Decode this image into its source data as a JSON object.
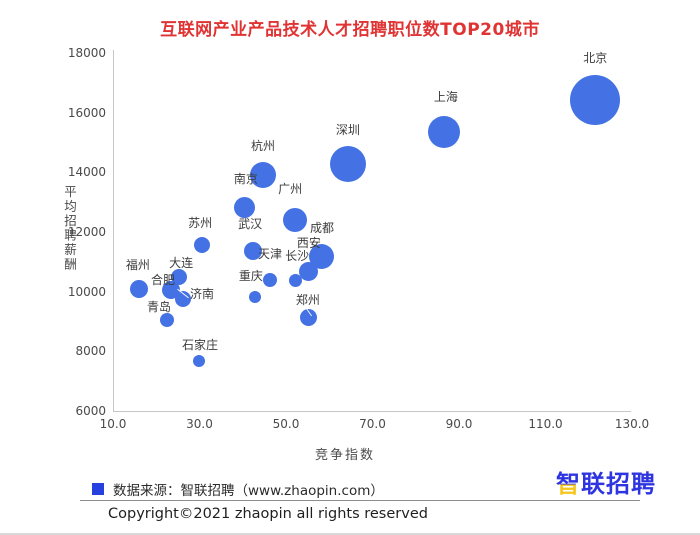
{
  "title": "互联网产业产品技术人才招聘职位数TOP20城市",
  "chart_data": {
    "type": "scatter",
    "title": "互联网产业产品技术人才招聘职位数TOP20城市",
    "xlabel": "竞争指数",
    "ylabel": "平均招聘薪酬",
    "xlim": [
      10,
      130
    ],
    "ylim": [
      6000,
      18000
    ],
    "x_ticks": [
      "10.0",
      "30.0",
      "50.0",
      "70.0",
      "90.0",
      "110.0",
      "130.0"
    ],
    "y_ticks": [
      "18000",
      "16000",
      "14000",
      "12000",
      "10000",
      "8000",
      "6000"
    ],
    "grid": false,
    "legend_position": "bottom-left",
    "bubble_size_meaning": "招聘职位数",
    "series": [
      {
        "name": "北京",
        "index": 121.5,
        "salary": 16470,
        "r": 25,
        "label_dx": 0,
        "label_dy": -43
      },
      {
        "name": "上海",
        "index": 86.5,
        "salary": 15370,
        "r": 16,
        "label_dx": 2,
        "label_dy": -36
      },
      {
        "name": "深圳",
        "index": 64.3,
        "salary": 14300,
        "r": 18,
        "label_dx": 0,
        "label_dy": -35
      },
      {
        "name": "杭州",
        "index": 44.7,
        "salary": 13930,
        "r": 13,
        "label_dx": 0,
        "label_dy": -30
      },
      {
        "name": "南京",
        "index": 40.5,
        "salary": 12870,
        "r": 10.5,
        "label_dx": 1,
        "label_dy": -29
      },
      {
        "name": "广州",
        "index": 52.1,
        "salary": 12430,
        "r": 12,
        "label_dx": -5,
        "label_dy": -32
      },
      {
        "name": "苏州",
        "index": 30.6,
        "salary": 11600,
        "r": 8,
        "label_dx": -2,
        "label_dy": -23
      },
      {
        "name": "武汉",
        "index": 42.4,
        "salary": 11400,
        "r": 9,
        "label_dx": -3,
        "label_dy": -28
      },
      {
        "name": "成都",
        "index": 58.1,
        "salary": 11200,
        "r": 12.5,
        "label_dx": 1,
        "label_dy": -30
      },
      {
        "name": "西安",
        "index": 55.3,
        "salary": 10700,
        "r": 9.5,
        "label_dx": 0,
        "label_dy": -30
      },
      {
        "name": "大连",
        "index": 25.3,
        "salary": 10530,
        "r": 8,
        "label_dx": 2,
        "label_dy": -15
      },
      {
        "name": "天津",
        "index": 46.3,
        "salary": 10430,
        "r": 7,
        "label_dx": 0,
        "label_dy": -27
      },
      {
        "name": "长沙",
        "index": 52.1,
        "salary": 10400,
        "r": 6.5,
        "label_dx": 2,
        "label_dy": -26
      },
      {
        "name": "福州",
        "index": 16.0,
        "salary": 10130,
        "r": 9,
        "label_dx": -1,
        "label_dy": -25
      },
      {
        "name": "合肥",
        "index": 23.4,
        "salary": 10100,
        "r": 9,
        "label_dx": -8,
        "label_dy": -11
      },
      {
        "name": "重庆",
        "index": 42.8,
        "salary": 9870,
        "r": 6,
        "label_dx": -4,
        "label_dy": -22
      },
      {
        "name": "济南",
        "index": 26.2,
        "salary": 9800,
        "r": 8,
        "label_dx": 19,
        "label_dy": -6
      },
      {
        "name": "郑州",
        "index": 55.3,
        "salary": 9170,
        "r": 8.5,
        "label_dx": -1,
        "label_dy": -18
      },
      {
        "name": "青岛",
        "index": 22.5,
        "salary": 9070,
        "r": 7,
        "label_dx": -8,
        "label_dy": -14
      },
      {
        "name": "石家庄",
        "index": 29.9,
        "salary": 7700,
        "r": 6,
        "label_dx": 1,
        "label_dy": -17
      }
    ]
  },
  "legend": {
    "source_label": "数据来源：智联招聘（www.zhaopin.com）"
  },
  "logo": {
    "char_first": "智",
    "chars_rest": "联招聘"
  },
  "footer": {
    "copyright": "Copyright©2021 zhaopin all rights reserved"
  },
  "colors": {
    "title": "#e03434",
    "bubble": "#4472e4",
    "legend_marker": "#2741e0",
    "logo_blue": "#2e35e0",
    "logo_yellow": "#f7c61a",
    "axis_line": "#c6c6c6",
    "tick_text": "#4a4a4a",
    "label_text": "#3c3c3c"
  }
}
